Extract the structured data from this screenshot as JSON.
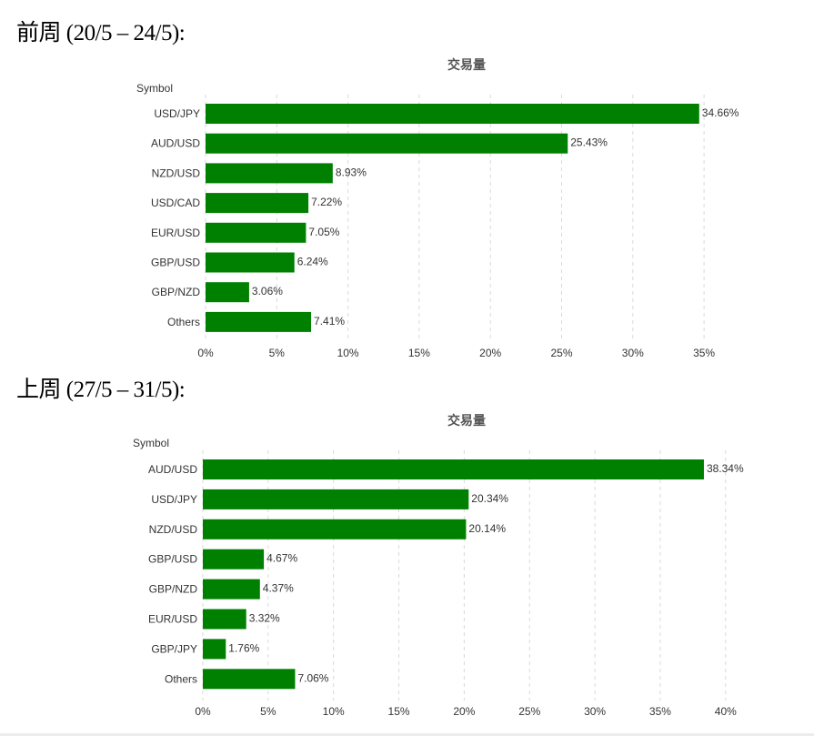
{
  "headings": [
    "前周 (20/5 – 24/5):",
    "上周 (27/5 – 31/5):"
  ],
  "colors": {
    "bar": "#008000",
    "grid": "#d9d9d9",
    "label": "#333333",
    "title": "#555555"
  },
  "chart_data": [
    {
      "type": "bar",
      "orientation": "horizontal",
      "title": "交易量",
      "ylabel": "Symbol",
      "xlabel": "",
      "categories": [
        "USD/JPY",
        "AUD/USD",
        "NZD/USD",
        "USD/CAD",
        "EUR/USD",
        "GBP/USD",
        "GBP/NZD",
        "Others"
      ],
      "values": [
        34.66,
        25.43,
        8.93,
        7.22,
        7.05,
        6.24,
        3.06,
        7.41
      ],
      "value_labels": [
        "34.66%",
        "25.43%",
        "8.93%",
        "7.22%",
        "7.05%",
        "6.24%",
        "3.06%",
        "7.41%"
      ],
      "xlim": [
        0,
        35
      ],
      "xticks": [
        0,
        5,
        10,
        15,
        20,
        25,
        30,
        35
      ],
      "xtick_labels": [
        "0%",
        "5%",
        "10%",
        "15%",
        "20%",
        "25%",
        "30%",
        "35%"
      ],
      "grid": "vertical dashed"
    },
    {
      "type": "bar",
      "orientation": "horizontal",
      "title": "交易量",
      "ylabel": "Symbol",
      "xlabel": "",
      "categories": [
        "AUD/USD",
        "USD/JPY",
        "NZD/USD",
        "GBP/USD",
        "GBP/NZD",
        "EUR/USD",
        "GBP/JPY",
        "Others"
      ],
      "values": [
        38.34,
        20.34,
        20.14,
        4.67,
        4.37,
        3.32,
        1.76,
        7.06
      ],
      "value_labels": [
        "38.34%",
        "20.34%",
        "20.14%",
        "4.67%",
        "4.37%",
        "3.32%",
        "1.76%",
        "7.06%"
      ],
      "xlim": [
        0,
        40
      ],
      "xticks": [
        0,
        5,
        10,
        15,
        20,
        25,
        30,
        35,
        40
      ],
      "xtick_labels": [
        "0%",
        "5%",
        "10%",
        "15%",
        "20%",
        "25%",
        "30%",
        "35%",
        "40%"
      ],
      "grid": "vertical dashed"
    }
  ]
}
